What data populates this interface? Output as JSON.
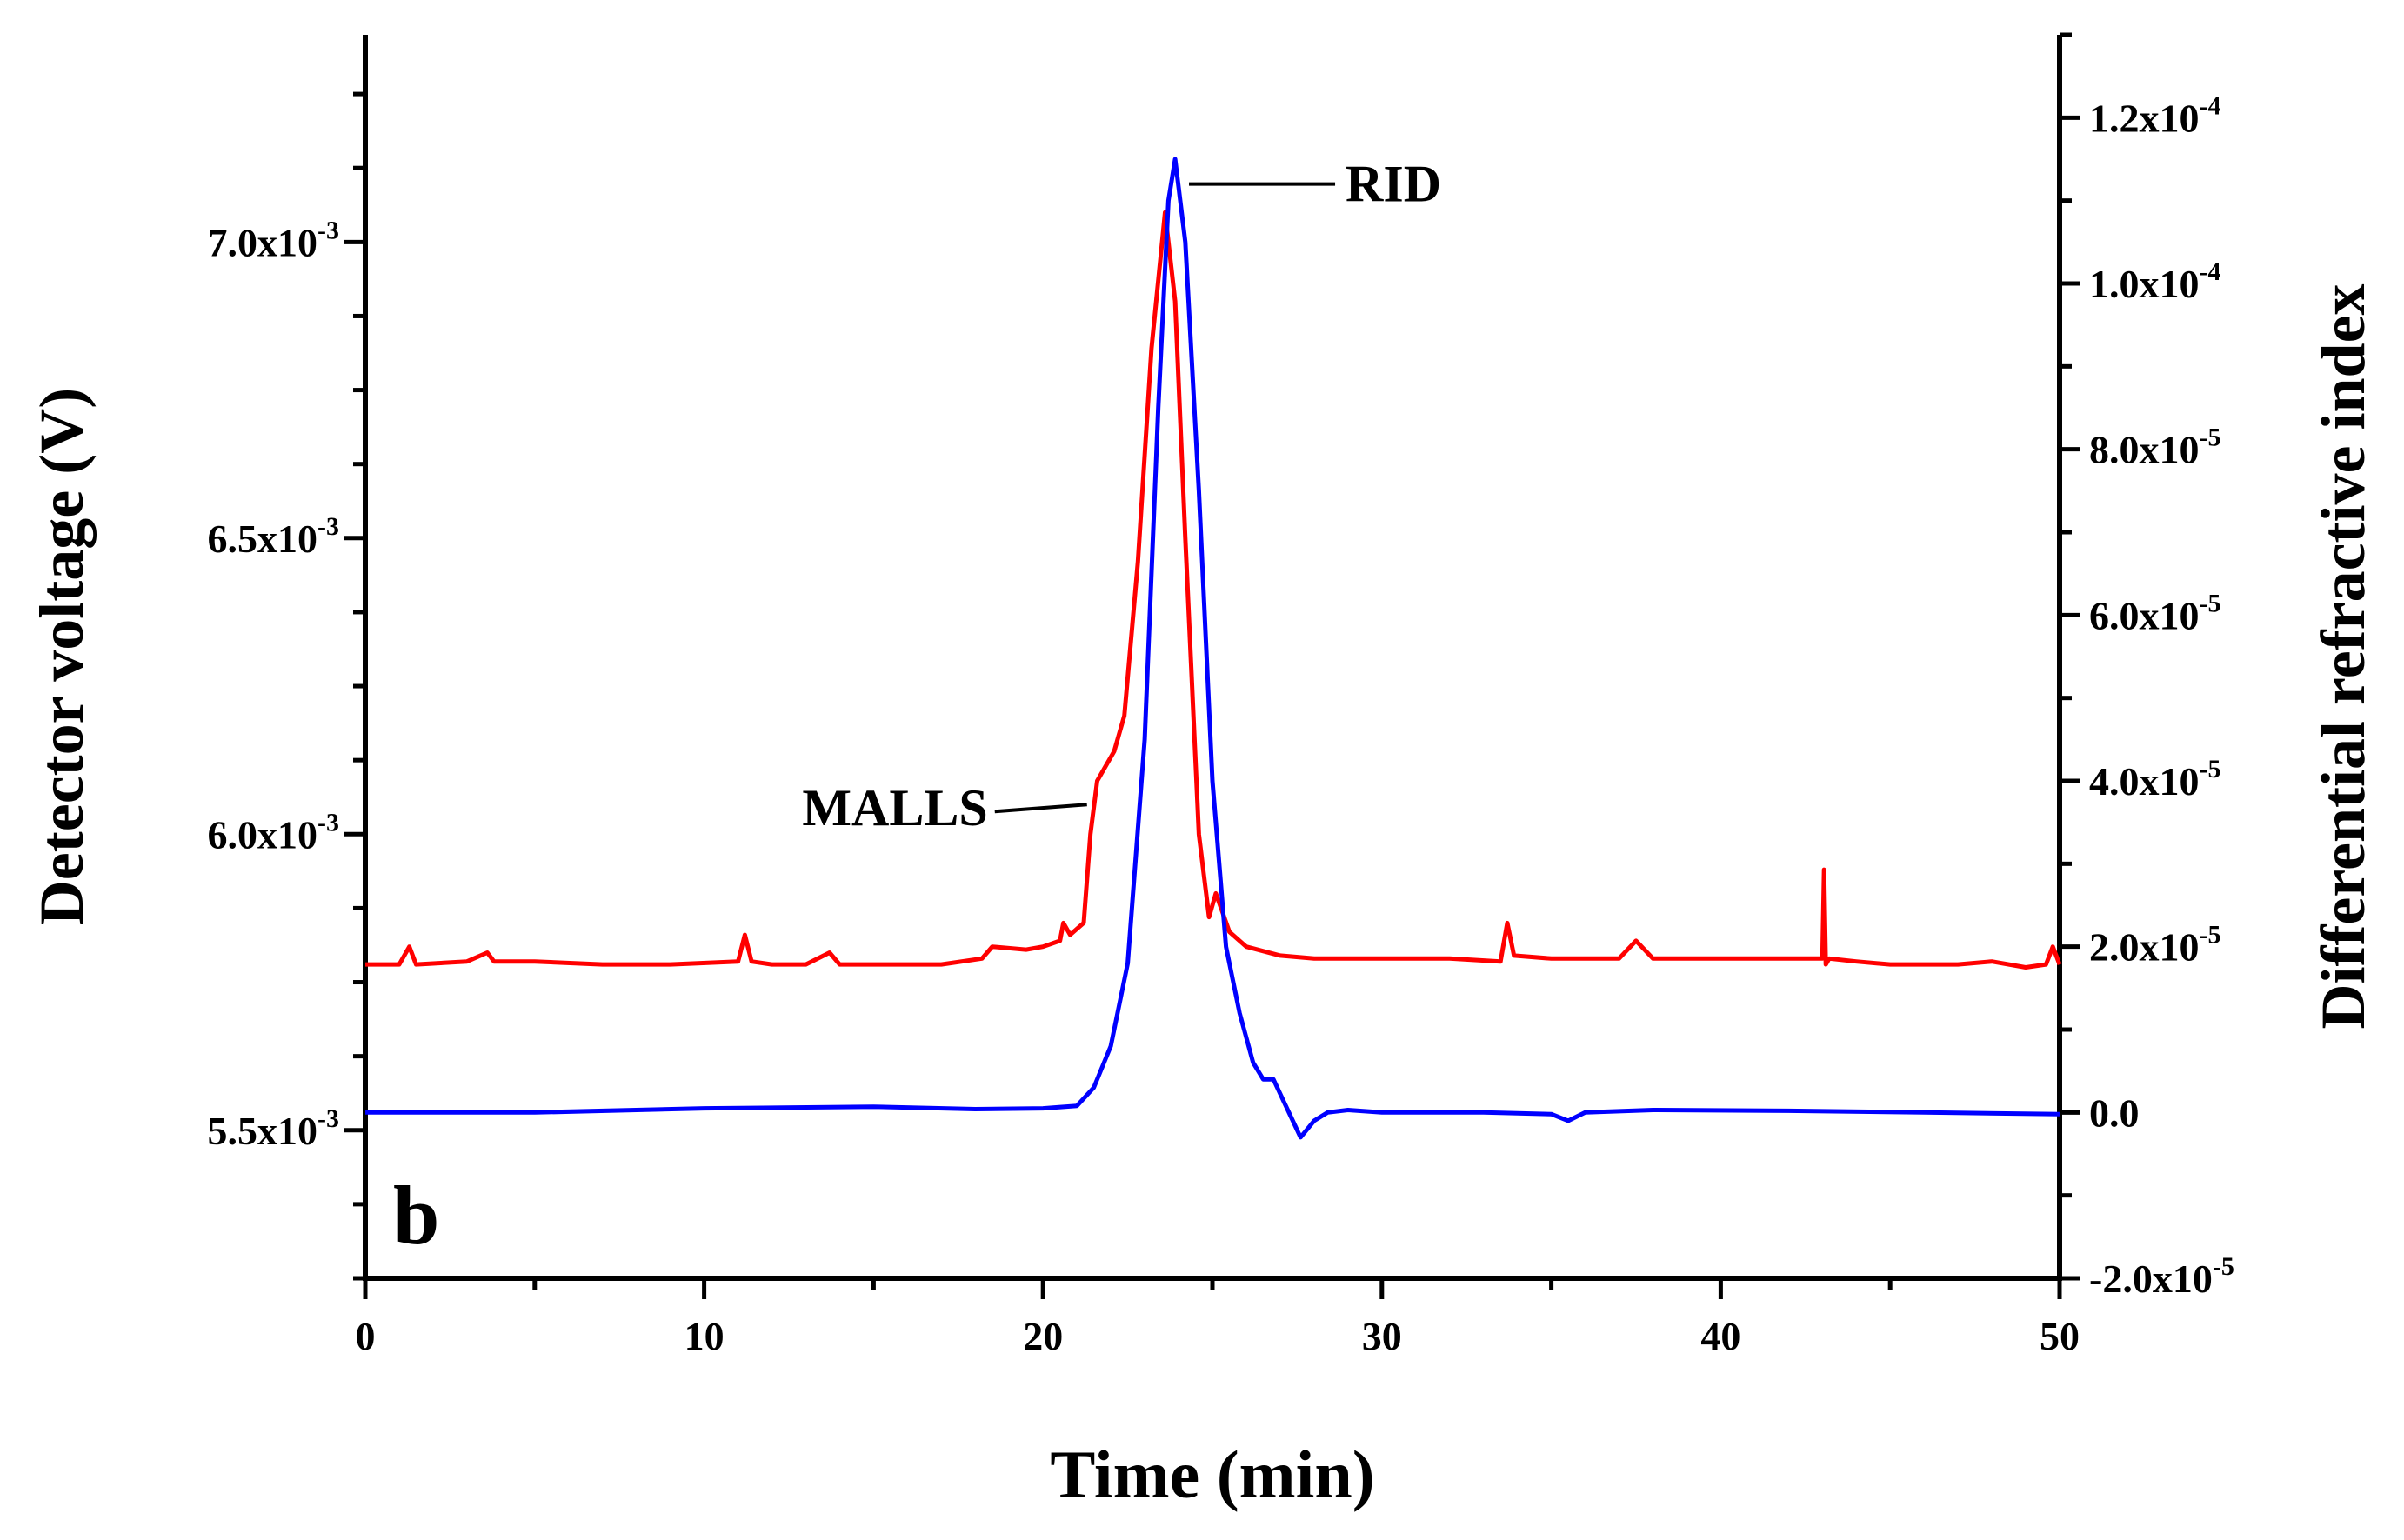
{
  "chart_data": {
    "type": "line",
    "panel_label": "b",
    "xlabel": "Time (min)",
    "ylabel_left": "Detector voltage (V)",
    "ylabel_right": "Differential refractive index",
    "xlim": [
      0,
      50
    ],
    "ylim_left": [
      0.00525,
      0.00735
    ],
    "ylim_right": [
      -2e-05,
      0.00013
    ],
    "x_ticks": [
      {
        "value": 0,
        "label": "0"
      },
      {
        "value": 10,
        "label": "10"
      },
      {
        "value": 20,
        "label": "20"
      },
      {
        "value": 30,
        "label": "30"
      },
      {
        "value": 40,
        "label": "40"
      },
      {
        "value": 50,
        "label": "50"
      }
    ],
    "y_left_ticks": [
      {
        "value": 0.0055,
        "mantissa": "5.5x10",
        "exp": "-3"
      },
      {
        "value": 0.006,
        "mantissa": "6.0x10",
        "exp": "-3"
      },
      {
        "value": 0.0065,
        "mantissa": "6.5x10",
        "exp": "-3"
      },
      {
        "value": 0.007,
        "mantissa": "7.0x10",
        "exp": "-3"
      }
    ],
    "y_right_ticks": [
      {
        "value": -2e-05,
        "mantissa": "-2.0x10",
        "exp": "-5"
      },
      {
        "value": 0.0,
        "mantissa": "0.0",
        "exp": ""
      },
      {
        "value": 2e-05,
        "mantissa": "2.0x10",
        "exp": "-5"
      },
      {
        "value": 4e-05,
        "mantissa": "4.0x10",
        "exp": "-5"
      },
      {
        "value": 6e-05,
        "mantissa": "6.0x10",
        "exp": "-5"
      },
      {
        "value": 8e-05,
        "mantissa": "8.0x10",
        "exp": "-5"
      },
      {
        "value": 0.0001,
        "mantissa": "1.0x10",
        "exp": "-4"
      },
      {
        "value": 0.00012,
        "mantissa": "1.2x10",
        "exp": "-4"
      }
    ],
    "series": [
      {
        "name": "MALLS",
        "axis": "left",
        "color": "#ff0000",
        "x": [
          0,
          1,
          1.3,
          1.5,
          3,
          3.6,
          3.8,
          5,
          7,
          9,
          11,
          11.2,
          11.4,
          12,
          13,
          13.7,
          14,
          15,
          17,
          18.2,
          18.5,
          19.5,
          20,
          20.5,
          20.6,
          20.8,
          21.2,
          21.4,
          21.6,
          21.9,
          22.1,
          22.4,
          22.8,
          23.2,
          23.6,
          23.9,
          24.2,
          24.6,
          24.9,
          25.1,
          25.5,
          26,
          27,
          28,
          30,
          32,
          33.5,
          33.7,
          33.9,
          35,
          37,
          37.5,
          38,
          40,
          42,
          43,
          43.05,
          43.1,
          43.2,
          44,
          45,
          46,
          47,
          48,
          49,
          49.6,
          49.8,
          50
        ],
        "y": [
          0.00578,
          0.00578,
          0.00581,
          0.00578,
          0.005785,
          0.0058,
          0.005785,
          0.005785,
          0.00578,
          0.00578,
          0.005785,
          0.00583,
          0.005785,
          0.00578,
          0.00578,
          0.0058,
          0.00578,
          0.00578,
          0.00578,
          0.00579,
          0.00581,
          0.005805,
          0.00581,
          0.00582,
          0.00585,
          0.00583,
          0.00585,
          0.006,
          0.00609,
          0.00612,
          0.00614,
          0.0062,
          0.00646,
          0.00682,
          0.00705,
          0.0069,
          0.0065,
          0.006,
          0.00586,
          0.0059,
          0.005835,
          0.00581,
          0.005795,
          0.00579,
          0.00579,
          0.00579,
          0.005785,
          0.00585,
          0.005795,
          0.00579,
          0.00579,
          0.00582,
          0.00579,
          0.00579,
          0.00579,
          0.00579,
          0.00594,
          0.00578,
          0.00579,
          0.005785,
          0.00578,
          0.00578,
          0.00578,
          0.005785,
          0.005775,
          0.00578,
          0.00581,
          0.00578
        ]
      },
      {
        "name": "RID",
        "axis": "right",
        "color": "#0000ff",
        "x": [
          0,
          5,
          10,
          15,
          18,
          20,
          21,
          21.5,
          22,
          22.5,
          23,
          23.4,
          23.7,
          23.9,
          24.2,
          24.6,
          25.0,
          25.4,
          25.8,
          26.2,
          26.5,
          26.8,
          27.2,
          27.6,
          28.0,
          28.4,
          29,
          30,
          33,
          35,
          35.5,
          36,
          38,
          42,
          46,
          50
        ],
        "y": [
          0.0,
          0.0,
          5e-07,
          7e-07,
          4e-07,
          5e-07,
          8e-07,
          3e-06,
          8e-06,
          1.8e-05,
          4.5e-05,
          8.5e-05,
          0.00011,
          0.000115,
          0.000105,
          7.5e-05,
          4e-05,
          2e-05,
          1.2e-05,
          6e-06,
          4e-06,
          4e-06,
          5e-07,
          -3e-06,
          -1e-06,
          0.0,
          3e-07,
          0.0,
          0.0,
          -2e-07,
          -1e-06,
          0.0,
          3e-07,
          2e-07,
          0.0,
          -2e-07
        ]
      }
    ],
    "annotations": [
      {
        "text": "MALLS",
        "target_series": "MALLS",
        "x": 21.4,
        "y": 0.00605
      },
      {
        "text": "RID",
        "target_series": "RID",
        "x": 24.0,
        "y": 0.000112
      }
    ]
  }
}
